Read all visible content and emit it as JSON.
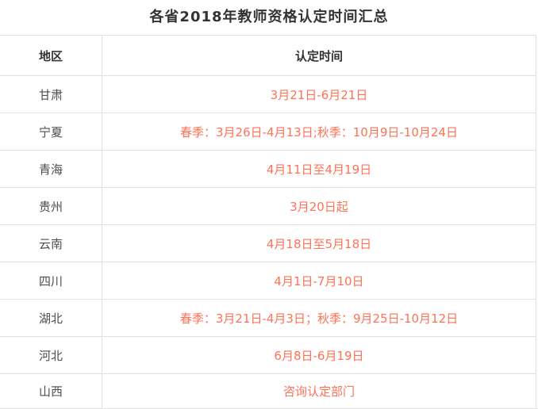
{
  "title": "各省2018年教师资格认定时间汇总",
  "colors": {
    "accent_time_text": "#ff7256",
    "heading_text": "#333333",
    "region_text": "#4d4d4d",
    "border": "#e1e1e1",
    "background": "#ffffff"
  },
  "table": {
    "columns": [
      "地区",
      "认定时间"
    ],
    "rows": [
      {
        "region": "甘肃",
        "time": "3月21日-6月21日"
      },
      {
        "region": "宁夏",
        "time": "春季：3月26日-4月13日;秋季：10月9日-10月24日"
      },
      {
        "region": "青海",
        "time": "4月11日至4月19日"
      },
      {
        "region": "贵州",
        "time": "3月20日起"
      },
      {
        "region": "云南",
        "time": "4月18日至5月18日"
      },
      {
        "region": "四川",
        "time": "4月1日-7月10日"
      },
      {
        "region": "湖北",
        "time": "春季：3月21日-4月3日；秋季：9月25日-10月12日"
      },
      {
        "region": "河北",
        "time": "6月8日-6月19日"
      },
      {
        "region": "山西",
        "time": "咨询认定部门"
      }
    ]
  }
}
